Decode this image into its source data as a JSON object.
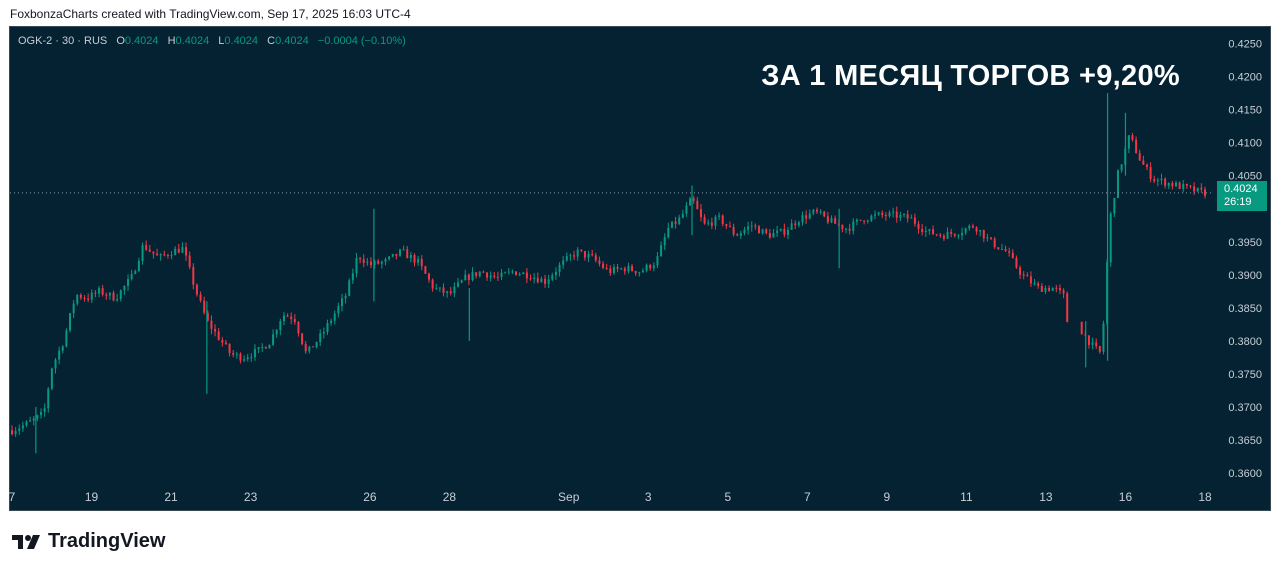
{
  "credit": "FoxbonzaCharts created with TradingView.com, Sep 17, 2025 16:03 UTC-4",
  "legend": {
    "symbol": "OGK-2 · 30 · RUS",
    "o_label": "O",
    "o": "0.4024",
    "h_label": "H",
    "h": "0.4024",
    "l_label": "L",
    "l": "0.4024",
    "c_label": "C",
    "c": "0.4024",
    "change": "−0.0004 (−0.10%)"
  },
  "headline": "ЗА 1 МЕСЯЦ ТОРГОВ +9,20%",
  "price_tag": {
    "price": "0.4024",
    "countdown": "26:19"
  },
  "brand": "TradingView",
  "colors": {
    "background": "#052232",
    "up": "#089981",
    "down": "#f23645",
    "tag": "#089981",
    "text": "#c8ced6"
  },
  "chart_data": {
    "type": "candlestick",
    "symbol": "OGK-2",
    "interval": "30",
    "y_ticks": [
      "0.4250",
      "0.4200",
      "0.4150",
      "0.4100",
      "0.4050",
      "0.3950",
      "0.3900",
      "0.3850",
      "0.3800",
      "0.3750",
      "0.3700",
      "0.3650",
      "0.3600"
    ],
    "x_ticks": [
      {
        "label": "7",
        "day": 0
      },
      {
        "label": "19",
        "day": 2
      },
      {
        "label": "21",
        "day": 4
      },
      {
        "label": "23",
        "day": 6
      },
      {
        "label": "26",
        "day": 9
      },
      {
        "label": "28",
        "day": 11
      },
      {
        "label": "Sep",
        "day": 14
      },
      {
        "label": "3",
        "day": 16
      },
      {
        "label": "5",
        "day": 18
      },
      {
        "label": "7",
        "day": 20
      },
      {
        "label": "9",
        "day": 22
      },
      {
        "label": "11",
        "day": 24
      },
      {
        "label": "13",
        "day": 26
      },
      {
        "label": "16",
        "day": 28
      },
      {
        "label": "18",
        "day": 30
      }
    ],
    "ylim": [
      0.3582,
      0.4275
    ],
    "xlim": [
      0,
      30
    ],
    "last_price": 0.4024,
    "path": [
      [
        0.0,
        0.3665
      ],
      [
        0.4,
        0.3675
      ],
      [
        0.8,
        0.369
      ],
      [
        1.0,
        0.376
      ],
      [
        1.3,
        0.38
      ],
      [
        1.6,
        0.387
      ],
      [
        1.9,
        0.3865
      ],
      [
        2.2,
        0.3875
      ],
      [
        2.6,
        0.3865
      ],
      [
        3.0,
        0.3895
      ],
      [
        3.3,
        0.3945
      ],
      [
        3.7,
        0.3925
      ],
      [
        4.0,
        0.3935
      ],
      [
        4.3,
        0.394
      ],
      [
        4.6,
        0.388
      ],
      [
        4.9,
        0.383
      ],
      [
        5.2,
        0.3805
      ],
      [
        5.5,
        0.378
      ],
      [
        5.8,
        0.3775
      ],
      [
        6.2,
        0.3785
      ],
      [
        6.5,
        0.38
      ],
      [
        6.8,
        0.384
      ],
      [
        7.1,
        0.3835
      ],
      [
        7.4,
        0.378
      ],
      [
        7.8,
        0.381
      ],
      [
        8.1,
        0.384
      ],
      [
        8.4,
        0.387
      ],
      [
        8.7,
        0.393
      ],
      [
        9.0,
        0.3915
      ],
      [
        9.4,
        0.392
      ],
      [
        9.8,
        0.3935
      ],
      [
        10.2,
        0.392
      ],
      [
        10.6,
        0.388
      ],
      [
        11.0,
        0.387
      ],
      [
        11.4,
        0.3895
      ],
      [
        11.8,
        0.3905
      ],
      [
        12.2,
        0.3895
      ],
      [
        12.6,
        0.3905
      ],
      [
        13.0,
        0.39
      ],
      [
        13.4,
        0.389
      ],
      [
        13.8,
        0.3915
      ],
      [
        14.2,
        0.3935
      ],
      [
        14.6,
        0.3925
      ],
      [
        15.0,
        0.3905
      ],
      [
        15.4,
        0.391
      ],
      [
        15.8,
        0.3905
      ],
      [
        16.2,
        0.392
      ],
      [
        16.5,
        0.397
      ],
      [
        16.8,
        0.3985
      ],
      [
        17.1,
        0.4015
      ],
      [
        17.4,
        0.3975
      ],
      [
        17.8,
        0.3985
      ],
      [
        18.2,
        0.396
      ],
      [
        18.6,
        0.3975
      ],
      [
        19.0,
        0.396
      ],
      [
        19.4,
        0.3965
      ],
      [
        19.8,
        0.3985
      ],
      [
        20.2,
        0.3995
      ],
      [
        20.6,
        0.398
      ],
      [
        21.0,
        0.397
      ],
      [
        21.4,
        0.3985
      ],
      [
        21.8,
        0.399
      ],
      [
        22.2,
        0.399
      ],
      [
        22.6,
        0.3985
      ],
      [
        23.0,
        0.3965
      ],
      [
        23.4,
        0.396
      ],
      [
        23.8,
        0.3965
      ],
      [
        24.2,
        0.3975
      ],
      [
        24.6,
        0.395
      ],
      [
        25.0,
        0.3935
      ],
      [
        25.4,
        0.39
      ],
      [
        25.8,
        0.388
      ],
      [
        26.2,
        0.388
      ],
      [
        26.5,
        0.3865
      ],
      [
        26.55,
        0.3815
      ],
      [
        26.9,
        0.3815
      ],
      [
        27.2,
        0.379
      ],
      [
        27.4,
        0.378
      ],
      [
        27.6,
        0.398
      ],
      [
        27.8,
        0.405
      ],
      [
        28.1,
        0.411
      ],
      [
        28.4,
        0.407
      ],
      [
        28.7,
        0.4045
      ],
      [
        29.0,
        0.404
      ],
      [
        29.3,
        0.4035
      ],
      [
        29.6,
        0.403
      ],
      [
        29.9,
        0.4025
      ],
      [
        30.0,
        0.4024
      ]
    ],
    "spikes": [
      {
        "day": 27.55,
        "high": 0.4175,
        "low": 0.377
      },
      {
        "day": 27.0,
        "high": 0.383,
        "low": 0.376
      },
      {
        "day": 28.0,
        "high": 0.4145,
        "low": 0.405
      },
      {
        "day": 4.9,
        "high": 0.386,
        "low": 0.372
      },
      {
        "day": 9.1,
        "high": 0.4,
        "low": 0.386
      },
      {
        "day": 11.5,
        "high": 0.388,
        "low": 0.38
      },
      {
        "day": 20.8,
        "high": 0.4,
        "low": 0.391
      },
      {
        "day": 17.1,
        "high": 0.4035,
        "low": 0.396
      },
      {
        "day": 0.6,
        "high": 0.37,
        "low": 0.363
      }
    ]
  }
}
